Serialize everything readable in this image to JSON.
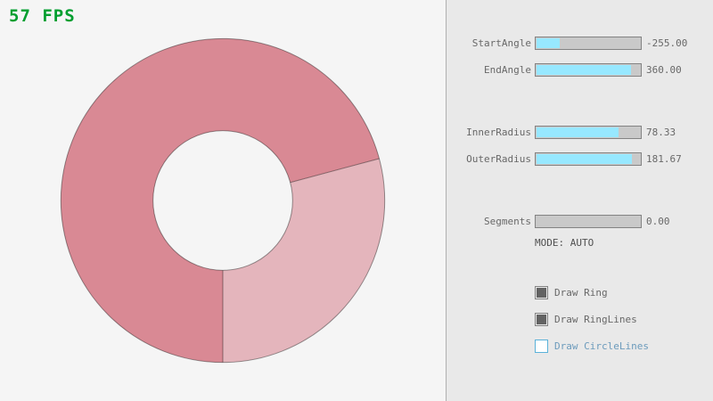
{
  "fps": {
    "label": "57 FPS",
    "color": "#009e2f"
  },
  "ring": {
    "start_angle": -255,
    "end_angle": 360,
    "inner_radius": 78.33,
    "outer_radius": 181.67,
    "colors": {
      "sector_light": "#e4b5bc",
      "sector_dark": "#d98994",
      "outline": "rgba(0,0,0,0.4)"
    }
  },
  "sliders": [
    {
      "label": "StartAngle",
      "value_label": "-255.00",
      "fill_pct": 21.7
    },
    {
      "label": "EndAngle",
      "value_label": "360.00",
      "fill_pct": 90.0
    },
    {
      "label": "InnerRadius",
      "value_label": "78.33",
      "fill_pct": 78.3
    },
    {
      "label": "OuterRadius",
      "value_label": "181.67",
      "fill_pct": 90.8
    },
    {
      "label": "Segments",
      "value_label": "0.00",
      "fill_pct": 0
    }
  ],
  "mode": {
    "label": "MODE: AUTO"
  },
  "checkboxes": [
    {
      "label": "Draw Ring",
      "checked": true,
      "focused": false
    },
    {
      "label": "Draw RingLines",
      "checked": true,
      "focused": false
    },
    {
      "label": "Draw CircleLines",
      "checked": false,
      "focused": true
    }
  ],
  "ui_colors": {
    "canvas_bg": "#f5f5f5",
    "panel_bg": "#e9e9e9",
    "divider": "#b0b0b0",
    "slider_track": "#c9c9c9",
    "slider_fill": "#97e8ff",
    "control_border": "#838383",
    "label_text": "#686868",
    "mode_text": "#505050",
    "focused_border": "#5bb2d9",
    "focused_text": "#6c9bbc"
  }
}
